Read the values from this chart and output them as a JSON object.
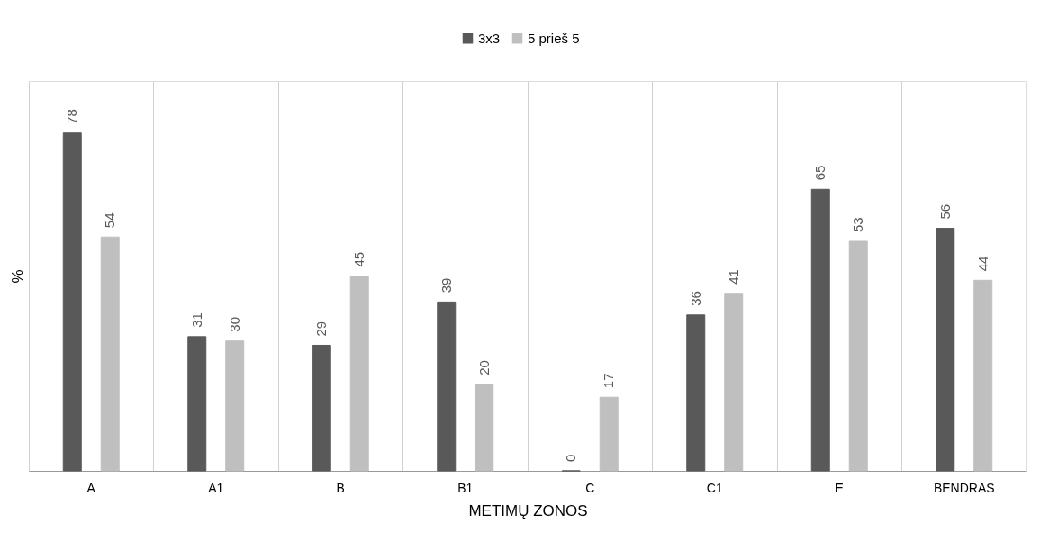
{
  "chart_data": {
    "type": "bar",
    "categories": [
      "A",
      "A1",
      "B",
      "B1",
      "C",
      "C1",
      "E",
      "BENDRAS"
    ],
    "series": [
      {
        "name": "3x3",
        "color": "#595959",
        "values": [
          78,
          31,
          29,
          39,
          0,
          36,
          65,
          56
        ]
      },
      {
        "name": "5 prieš 5",
        "color": "#bfbfbf",
        "values": [
          54,
          30,
          45,
          20,
          17,
          41,
          53,
          44
        ]
      }
    ],
    "xlabel": "METIMŲ ZONOS",
    "ylabel": "%",
    "ylim": [
      0,
      90
    ],
    "data_labels": true,
    "grid": "x",
    "legend": "top",
    "tick_labels": "x"
  }
}
